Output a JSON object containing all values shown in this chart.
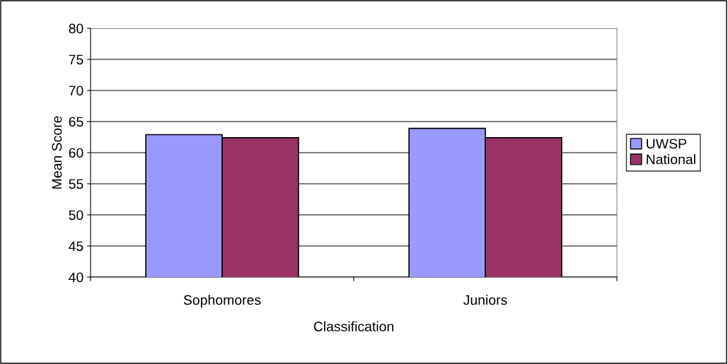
{
  "chart_data": {
    "type": "bar",
    "xlabel": "Classification",
    "ylabel": "Mean Score",
    "categories": [
      "Sophomores",
      "Juniors"
    ],
    "series": [
      {
        "name": "UWSP",
        "color": "#9999ff",
        "values": [
          62.9,
          63.9
        ]
      },
      {
        "name": "National",
        "color": "#993366",
        "values": [
          62.4,
          62.4
        ]
      }
    ],
    "ylim": [
      40,
      80
    ],
    "yticks": [
      40,
      45,
      50,
      55,
      60,
      65,
      70,
      75,
      80
    ],
    "grid": "y",
    "legend": "right"
  }
}
